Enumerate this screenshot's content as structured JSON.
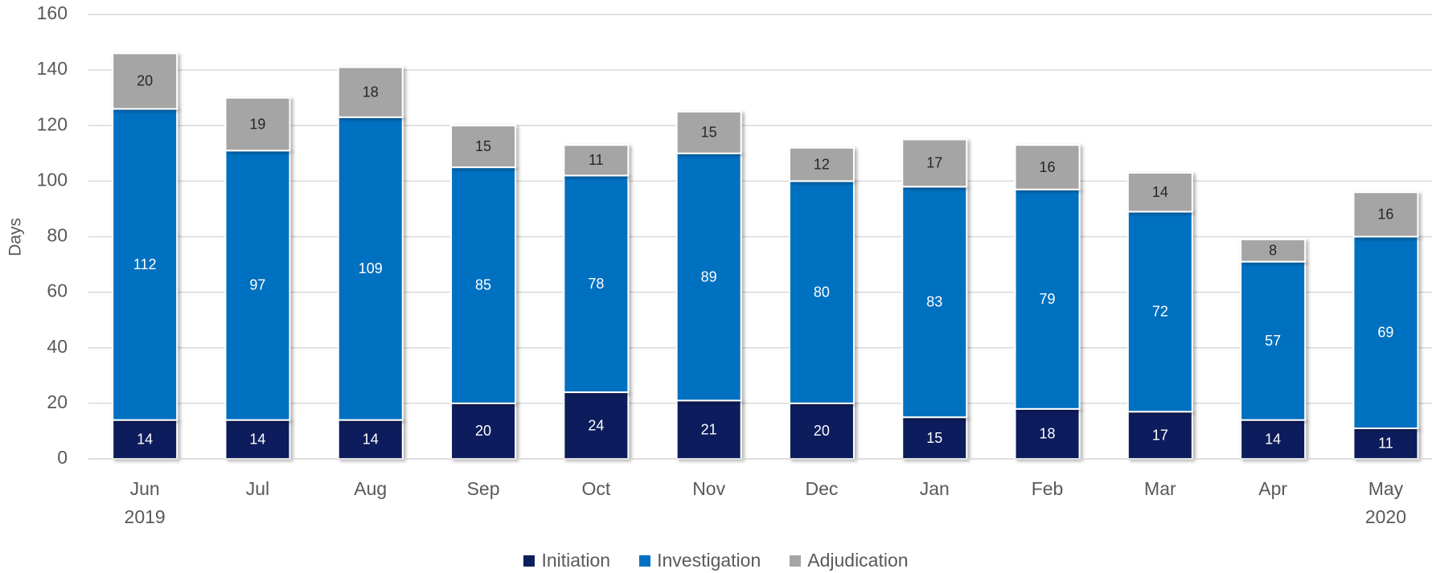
{
  "chart_data": {
    "type": "bar",
    "stacked": true,
    "y_label": "Days",
    "categories": [
      "Jun\n2019",
      "Jul",
      "Aug",
      "Sep",
      "Oct",
      "Nov",
      "Dec",
      "Jan",
      "Feb",
      "Mar",
      "Apr",
      "May\n2020"
    ],
    "series": [
      {
        "name": "Initiation",
        "color": "#0b1f5c",
        "values": [
          14,
          14,
          14,
          20,
          24,
          21,
          20,
          15,
          18,
          17,
          14,
          11
        ]
      },
      {
        "name": "Investigation",
        "color": "#0070c0",
        "values": [
          112,
          97,
          109,
          85,
          78,
          89,
          80,
          83,
          79,
          72,
          57,
          69
        ]
      },
      {
        "name": "Adjudication",
        "color": "#a5a5a5",
        "values": [
          20,
          19,
          18,
          15,
          11,
          15,
          12,
          17,
          16,
          14,
          8,
          16
        ]
      }
    ],
    "ylim": [
      0,
      160
    ],
    "yticks": [
      0,
      20,
      40,
      60,
      80,
      100,
      120,
      140,
      160
    ],
    "grid": true,
    "legend": "bottom"
  }
}
